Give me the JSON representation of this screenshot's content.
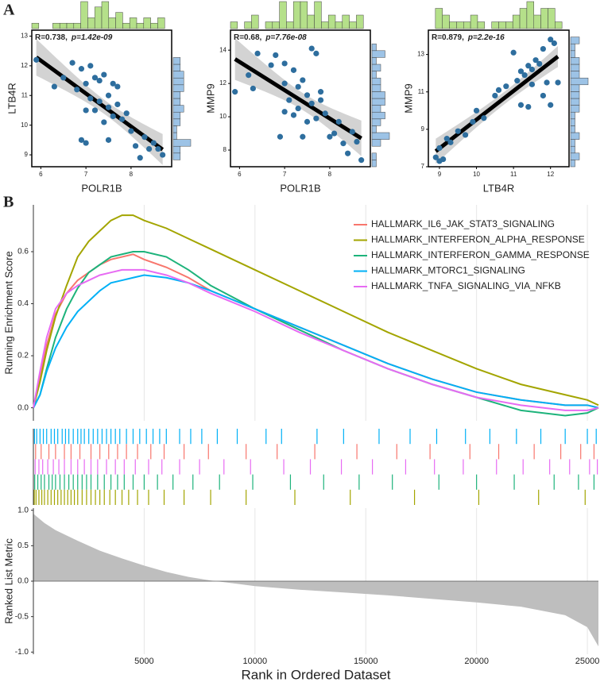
{
  "panel_labels": [
    "A",
    "B"
  ],
  "chart_data": [
    {
      "type": "scatter",
      "xlabel": "POLR1B",
      "ylabel": "LTB4R",
      "stat_r": "R=0.738,",
      "stat_p": "p=1.42e-09",
      "color": "#2e6e9e",
      "hist_color": "#b5e08a",
      "xlim": [
        5.8,
        8.9
      ],
      "xticks": [
        6,
        7,
        8
      ],
      "ylim": [
        8.6,
        13.2
      ],
      "yticks": [
        9,
        10,
        11,
        12,
        13
      ],
      "x": [
        5.9,
        6.3,
        6.5,
        6.7,
        6.8,
        6.9,
        7.0,
        7.0,
        7.1,
        7.1,
        7.2,
        7.2,
        7.3,
        7.3,
        7.4,
        7.4,
        7.5,
        7.5,
        7.5,
        7.6,
        7.6,
        7.7,
        7.7,
        7.8,
        7.9,
        8.0,
        8.1,
        8.2,
        8.3,
        8.4,
        8.5,
        8.6,
        8.7,
        7.0,
        6.9
      ],
      "values": [
        12.2,
        11.3,
        11.6,
        12.1,
        11.2,
        11.9,
        9.4,
        11.4,
        12.0,
        10.9,
        11.6,
        10.5,
        11.5,
        10.8,
        10.1,
        11.7,
        10.6,
        11.0,
        9.5,
        10.3,
        11.4,
        10.7,
        11.3,
        10.2,
        10.4,
        9.8,
        9.3,
        8.9,
        9.6,
        9.2,
        9.4,
        9.2,
        9.0,
        10.5,
        9.5
      ]
    },
    {
      "type": "scatter",
      "xlabel": "POLR1B",
      "ylabel": "MMP9",
      "stat_r": "R=0.68,",
      "stat_p": "p=7.76e-08",
      "color": "#2e6e9e",
      "hist_color": "#b5e08a",
      "xlim": [
        5.8,
        8.9
      ],
      "xticks": [
        6,
        7,
        8
      ],
      "ylim": [
        7,
        15.2
      ],
      "yticks": [
        8,
        10,
        12,
        14
      ],
      "x": [
        5.9,
        6.2,
        6.3,
        6.4,
        6.7,
        6.8,
        6.9,
        7.0,
        7.0,
        7.1,
        7.2,
        7.2,
        7.3,
        7.3,
        7.4,
        7.4,
        7.5,
        7.5,
        7.6,
        7.6,
        7.7,
        7.7,
        7.8,
        7.9,
        8.0,
        8.1,
        8.2,
        8.3,
        8.4,
        8.5,
        8.6,
        8.7,
        7.0,
        7.8
      ],
      "values": [
        11.5,
        12.5,
        11.7,
        13.8,
        13.1,
        13.7,
        8.8,
        12.0,
        13.2,
        11.0,
        10.1,
        12.8,
        11.8,
        10.5,
        12.2,
        8.8,
        11.3,
        9.7,
        14.1,
        10.8,
        13.8,
        9.9,
        11.5,
        10.2,
        8.8,
        9.0,
        9.7,
        8.4,
        7.8,
        9.1,
        8.5,
        7.4,
        10.3,
        11.0
      ]
    },
    {
      "type": "scatter",
      "xlabel": "LTB4R",
      "ylabel": "MMP9",
      "stat_r": "R=0.879,",
      "stat_p": "p=2.2e-16",
      "color": "#2e6e9e",
      "hist_color": "#b5e08a",
      "xlim": [
        8.7,
        12.5
      ],
      "xticks": [
        9,
        10,
        11,
        12
      ],
      "ylim": [
        7,
        14.3
      ],
      "yticks": [
        7,
        9,
        11,
        13
      ],
      "x": [
        8.9,
        9.0,
        9.0,
        9.1,
        9.2,
        9.3,
        9.5,
        9.7,
        9.9,
        10.0,
        10.2,
        10.5,
        10.6,
        10.8,
        11.0,
        11.1,
        11.2,
        11.2,
        11.3,
        11.4,
        11.4,
        11.5,
        11.6,
        11.7,
        11.8,
        11.9,
        12.0,
        12.0,
        12.1,
        12.2,
        11.8,
        11.5
      ],
      "values": [
        7.5,
        7.3,
        8.0,
        7.4,
        8.5,
        8.3,
        8.9,
        8.7,
        9.4,
        10.0,
        9.6,
        10.8,
        11.1,
        11.3,
        13.1,
        11.6,
        12.1,
        10.3,
        11.9,
        10.2,
        12.4,
        11.4,
        12.7,
        12.5,
        13.3,
        11.5,
        10.3,
        13.8,
        13.6,
        11.5,
        10.8,
        12.2
      ]
    },
    {
      "type": "line",
      "ylabel": "Running Enrichment Score",
      "xlim": [
        0,
        25500
      ],
      "xticks": [
        5000,
        10000,
        15000,
        20000,
        25000
      ],
      "ylim": [
        -0.05,
        0.78
      ],
      "yticks": [
        {
          "value": 0,
          "label": "0.0"
        },
        0.2,
        0.4,
        0.6
      ],
      "x": [
        0,
        300,
        600,
        1000,
        1500,
        2000,
        2500,
        3000,
        3500,
        4000,
        4500,
        5000,
        6000,
        7000,
        8000,
        10000,
        12000,
        14000,
        16000,
        18000,
        20000,
        22000,
        24000,
        25000,
        25500
      ],
      "series": [
        {
          "name": "HALLMARK_IL6_JAK_STAT3_SIGNALING",
          "color": "#f8766d",
          "values": [
            0,
            0.12,
            0.24,
            0.36,
            0.44,
            0.49,
            0.52,
            0.55,
            0.57,
            0.58,
            0.59,
            0.57,
            0.54,
            0.5,
            0.45,
            0.38,
            0.31,
            0.24,
            0.17,
            0.11,
            0.06,
            0.03,
            0.01,
            0.01,
            0
          ]
        },
        {
          "name": "HALLMARK_INTERFERON_ALPHA_RESPONSE",
          "color": "#a3a500",
          "values": [
            0,
            0.1,
            0.22,
            0.35,
            0.47,
            0.58,
            0.64,
            0.68,
            0.72,
            0.74,
            0.74,
            0.72,
            0.69,
            0.65,
            0.61,
            0.53,
            0.45,
            0.37,
            0.29,
            0.22,
            0.15,
            0.09,
            0.05,
            0.03,
            0.01
          ]
        },
        {
          "name": "HALLMARK_INTERFERON_GAMMA_RESPONSE",
          "color": "#1db37b",
          "values": [
            0,
            0.05,
            0.15,
            0.27,
            0.38,
            0.46,
            0.52,
            0.55,
            0.58,
            0.59,
            0.6,
            0.6,
            0.58,
            0.53,
            0.47,
            0.38,
            0.3,
            0.22,
            0.15,
            0.09,
            0.04,
            -0.01,
            -0.03,
            -0.02,
            0
          ]
        },
        {
          "name": "HALLMARK_MTORC1_SIGNALING",
          "color": "#00b0f6",
          "values": [
            0,
            0.05,
            0.14,
            0.23,
            0.31,
            0.37,
            0.41,
            0.45,
            0.48,
            0.49,
            0.5,
            0.51,
            0.5,
            0.48,
            0.45,
            0.38,
            0.31,
            0.24,
            0.17,
            0.11,
            0.06,
            0.03,
            0.01,
            0.01,
            0
          ]
        },
        {
          "name": "HALLMARK_TNFA_SIGNALING_VIA_NFKB",
          "color": "#e76bf3",
          "values": [
            0,
            0.14,
            0.27,
            0.38,
            0.44,
            0.47,
            0.49,
            0.51,
            0.52,
            0.53,
            0.53,
            0.53,
            0.51,
            0.48,
            0.44,
            0.37,
            0.29,
            0.22,
            0.15,
            0.09,
            0.04,
            0.01,
            -0.01,
            -0.01,
            0
          ]
        }
      ]
    },
    {
      "type": "rug",
      "xlim": [
        0,
        25500
      ],
      "series": [
        {
          "color": "#00b0f6",
          "values": [
            50,
            150,
            300,
            450,
            600,
            800,
            950,
            1100,
            1300,
            1450,
            1600,
            1800,
            2000,
            2150,
            2300,
            2500,
            2700,
            2900,
            3100,
            3300,
            3500,
            3700,
            3900,
            4200,
            4500,
            4800,
            5100,
            5400,
            5700,
            6000,
            6600,
            7100,
            7600,
            8300,
            9200,
            10500,
            11200,
            12800,
            14000,
            15600,
            17000,
            18200,
            19500,
            20600,
            21800,
            22900,
            24000,
            25000,
            25400
          ]
        },
        {
          "color": "#f8766d",
          "values": [
            100,
            350,
            700,
            1000,
            1400,
            1700,
            2100,
            2600,
            3000,
            3400,
            3800,
            4200,
            4700,
            5300,
            5900,
            6800,
            7900,
            9600,
            11000,
            12700,
            14600,
            16400,
            17900,
            19700,
            21000,
            22600,
            23800,
            24700,
            25300
          ]
        },
        {
          "color": "#e76bf3",
          "values": [
            80,
            250,
            420,
            650,
            900,
            1150,
            1400,
            1700,
            2000,
            2300,
            2600,
            2900,
            3300,
            3700,
            4100,
            4600,
            5200,
            5800,
            6600,
            7500,
            8600,
            9800,
            11300,
            12500,
            13900,
            15300,
            16800,
            18100,
            19400,
            20900,
            22100,
            23300,
            24200,
            25100,
            25450
          ]
        },
        {
          "color": "#1db37b",
          "values": [
            60,
            200,
            350,
            500,
            700,
            850,
            1000,
            1200,
            1400,
            1600,
            1800,
            2000,
            2200,
            2400,
            2600,
            2900,
            3200,
            3500,
            3800,
            4100,
            4500,
            5000,
            5600,
            6300,
            7200,
            8400,
            9900,
            11600,
            13100,
            14700,
            16200,
            18300,
            20000,
            21700,
            23500,
            24600,
            25300
          ]
        },
        {
          "color": "#a3a500",
          "values": [
            40,
            120,
            250,
            380,
            500,
            650,
            800,
            950,
            1100,
            1250,
            1400,
            1550,
            1700,
            1850,
            2000,
            2200,
            2400,
            2600,
            2800,
            3000,
            3200,
            3450,
            3700,
            4000,
            4300,
            4700,
            5200,
            5900,
            6800,
            8000,
            9600,
            11800,
            14300,
            17200,
            20100,
            22800,
            24900
          ]
        }
      ]
    },
    {
      "type": "area",
      "xlabel": "Rank in Ordered Dataset",
      "ylabel": "Ranked List Metric",
      "color": "#bebebe",
      "xlim": [
        0,
        25500
      ],
      "xticks": [
        5000,
        10000,
        15000,
        20000,
        25000
      ],
      "ylim": [
        -1.03,
        1.03
      ],
      "yticks": [
        {
          "value": -1,
          "label": "-1.0"
        },
        -0.5,
        {
          "value": 0,
          "label": "0.0"
        },
        0.5,
        {
          "value": 1,
          "label": "1.0"
        }
      ],
      "x": [
        0,
        500,
        1000,
        2000,
        3000,
        4000,
        5000,
        6000,
        7000,
        8000,
        9000,
        10000,
        12000,
        14000,
        16000,
        18000,
        20000,
        22000,
        24000,
        25000,
        25500
      ],
      "values": [
        0.95,
        0.82,
        0.72,
        0.57,
        0.43,
        0.32,
        0.22,
        0.13,
        0.06,
        0.01,
        -0.03,
        -0.07,
        -0.12,
        -0.16,
        -0.2,
        -0.25,
        -0.3,
        -0.36,
        -0.48,
        -0.65,
        -0.92
      ]
    }
  ]
}
